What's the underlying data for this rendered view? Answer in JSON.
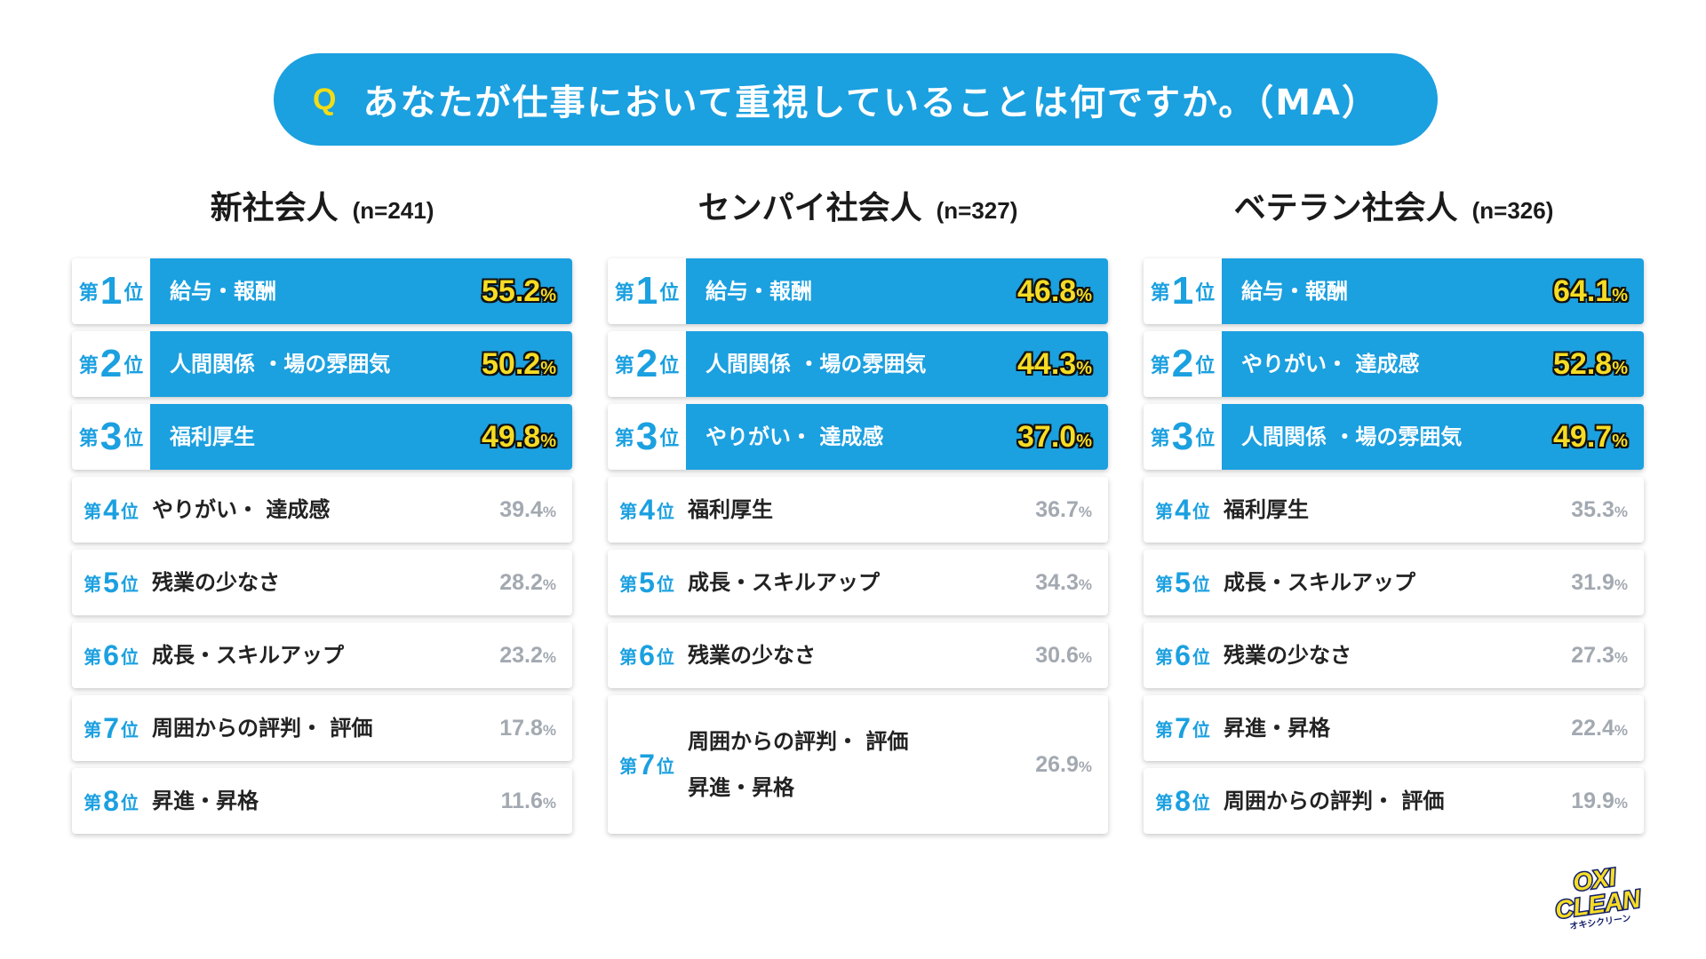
{
  "question": {
    "mark": "Q",
    "text": "あなたが仕事において重視していることは何ですか。（MA）"
  },
  "rank_prefix": "第",
  "rank_suffix": "位",
  "percent_sign": "%",
  "colors": {
    "accent": "#1ba0e0",
    "highlight_value": "#f6dc24",
    "muted_value": "#a3a9b1"
  },
  "chart_data": [
    {
      "type": "table",
      "title": "新社会人",
      "n": "(n=241)",
      "items": [
        {
          "rank": "1",
          "label": "給与・報酬",
          "value": "55.2"
        },
        {
          "rank": "2",
          "label": "人間関係 ・場の雰囲気",
          "value": "50.2"
        },
        {
          "rank": "3",
          "label": "福利厚生",
          "value": "49.8"
        },
        {
          "rank": "4",
          "label": "やりがい・ 達成感",
          "value": "39.4"
        },
        {
          "rank": "5",
          "label": "残業の少なさ",
          "value": "28.2"
        },
        {
          "rank": "6",
          "label": "成長・スキルアップ",
          "value": "23.2"
        },
        {
          "rank": "7",
          "label": "周囲からの評判・ 評価",
          "value": "17.8"
        },
        {
          "rank": "8",
          "label": "昇進・昇格",
          "value": "11.6"
        }
      ]
    },
    {
      "type": "table",
      "title": "センパイ社会人",
      "n": "(n=327)",
      "items": [
        {
          "rank": "1",
          "label": "給与・報酬",
          "value": "46.8"
        },
        {
          "rank": "2",
          "label": "人間関係 ・場の雰囲気",
          "value": "44.3"
        },
        {
          "rank": "3",
          "label": "やりがい・ 達成感",
          "value": "37.0"
        },
        {
          "rank": "4",
          "label": "福利厚生",
          "value": "36.7"
        },
        {
          "rank": "5",
          "label": "成長・スキルアップ",
          "value": "34.3"
        },
        {
          "rank": "6",
          "label": "残業の少なさ",
          "value": "30.6"
        },
        {
          "rank": "7",
          "label": "周囲からの評判・ 評価",
          "label2": "昇進・昇格",
          "value": "26.9"
        }
      ]
    },
    {
      "type": "table",
      "title": "ベテラン社会人",
      "n": "(n=326)",
      "items": [
        {
          "rank": "1",
          "label": "給与・報酬",
          "value": "64.1"
        },
        {
          "rank": "2",
          "label": "やりがい・ 達成感",
          "value": "52.8"
        },
        {
          "rank": "3",
          "label": "人間関係 ・場の雰囲気",
          "value": "49.7"
        },
        {
          "rank": "4",
          "label": "福利厚生",
          "value": "35.3"
        },
        {
          "rank": "5",
          "label": "成長・スキルアップ",
          "value": "31.9"
        },
        {
          "rank": "6",
          "label": "残業の少なさ",
          "value": "27.3"
        },
        {
          "rank": "7",
          "label": "昇進・昇格",
          "value": "22.4"
        },
        {
          "rank": "8",
          "label": "周囲からの評判・ 評価",
          "value": "19.9"
        }
      ]
    }
  ],
  "logo": {
    "line1": "OXI",
    "line2": "CLEAN",
    "line3": "オキシクリーン"
  }
}
